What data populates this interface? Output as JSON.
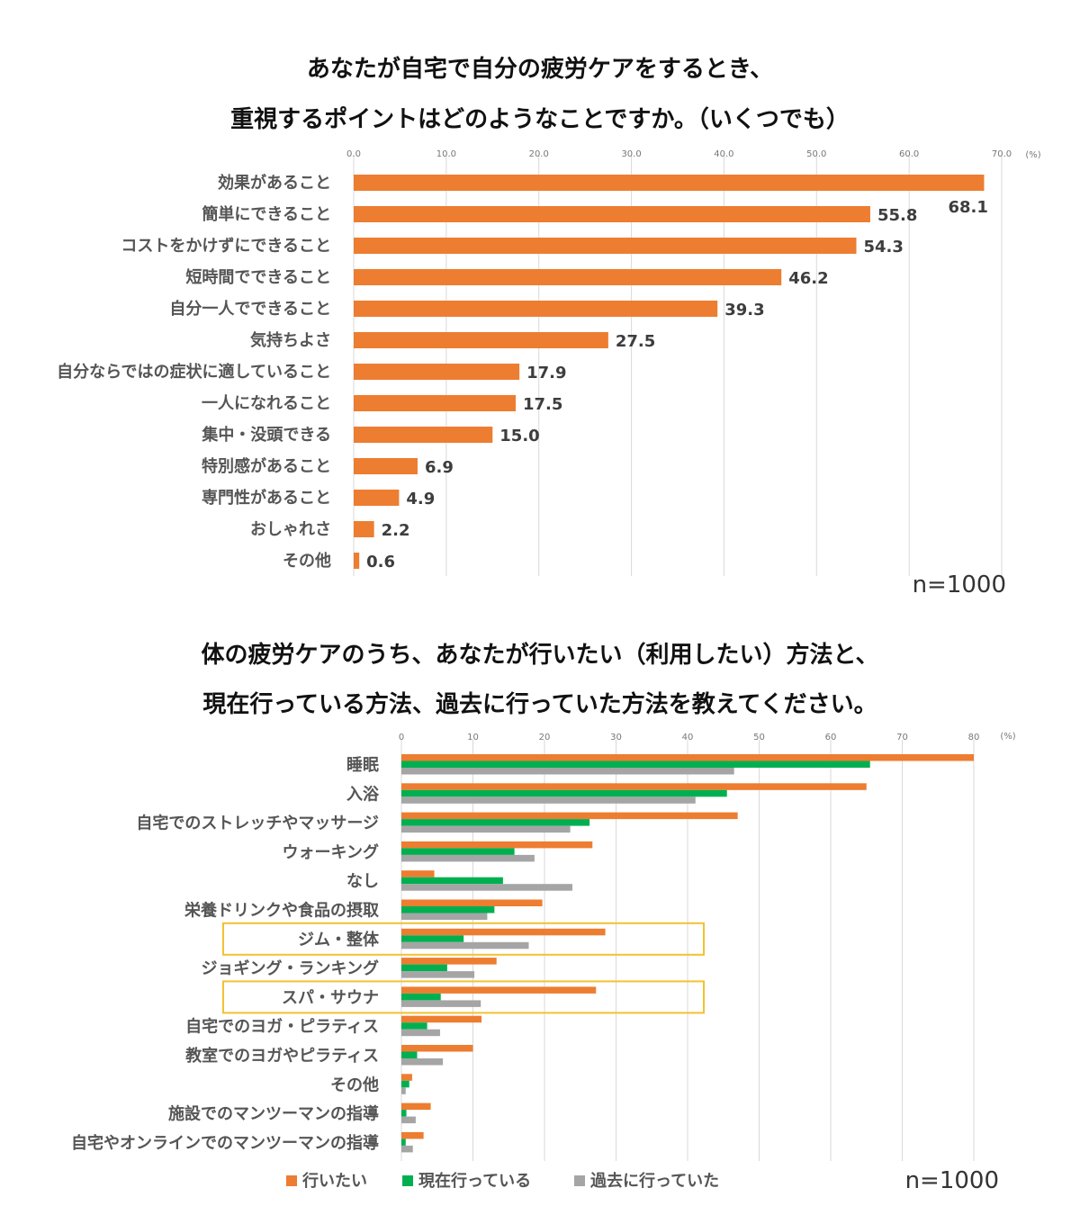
{
  "chart_data": [
    {
      "type": "bar",
      "orientation": "horizontal",
      "title_lines": [
        "あなたが自宅で自分の疲労ケアをするとき、",
        "重視するポイントはどのようなことですか。（いくつでも）"
      ],
      "unit_label": "(%)",
      "xlim": [
        0,
        70
      ],
      "ticks": [
        "0.0",
        "10.0",
        "20.0",
        "30.0",
        "40.0",
        "50.0",
        "60.0",
        "70.0"
      ],
      "categories": [
        "効果があること",
        "簡単にできること",
        "コストをかけずにできること",
        "短時間でできること",
        "自分一人でできること",
        "気持ちよさ",
        "自分ならではの症状に適していること",
        "一人になれること",
        "集中・没頭できる",
        "特別感があること",
        "専門性があること",
        "おしゃれさ",
        "その他"
      ],
      "values": [
        68.1,
        55.8,
        54.3,
        46.2,
        39.3,
        27.5,
        17.9,
        17.5,
        15.0,
        6.9,
        4.9,
        2.2,
        0.6
      ],
      "value_labels": [
        "68.1",
        "55.8",
        "54.3",
        "46.2",
        "39.3",
        "27.5",
        "17.9",
        "17.5",
        "15.0",
        "6.9",
        "4.9",
        "2.2",
        "0.6"
      ],
      "color": "#ED7D31",
      "sample_label": "n=1000"
    },
    {
      "type": "bar",
      "orientation": "horizontal",
      "title_lines": [
        "体の疲労ケアのうち、あなたが行いたい（利用したい）方法と、",
        "現在行っている方法、過去に行っていた方法を教えてください。"
      ],
      "unit_label": "(%)",
      "xlim": [
        0,
        80
      ],
      "ticks": [
        "0",
        "10",
        "20",
        "30",
        "40",
        "50",
        "60",
        "70",
        "80"
      ],
      "categories": [
        "睡眠",
        "入浴",
        "自宅でのストレッチやマッサージ",
        "ウォーキング",
        "なし",
        "栄養ドリンクや食品の摂取",
        "ジム・整体",
        "ジョギング・ランキング",
        "スパ・サウナ",
        "自宅でのヨガ・ピラティス",
        "教室でのヨガやピラティス",
        "その他",
        "施設でのマンツーマンの指導",
        "自宅やオンラインでのマンツーマンの指導"
      ],
      "series": [
        {
          "name": "行いたい",
          "color": "#ED7D31",
          "values": [
            80,
            65,
            47,
            26.7,
            4.6,
            19.7,
            28.5,
            13.3,
            27.2,
            11.2,
            10,
            1.5,
            4.1,
            3.1
          ]
        },
        {
          "name": "現在行っている",
          "color": "#00B050",
          "values": [
            65.5,
            45.5,
            26.3,
            15.8,
            14.2,
            13,
            8.7,
            6.4,
            5.5,
            3.6,
            2.2,
            1.1,
            0.7,
            0.6
          ]
        },
        {
          "name": "過去に行っていた",
          "color": "#A5A5A5",
          "values": [
            46.5,
            41.1,
            23.6,
            18.6,
            23.9,
            12,
            17.8,
            10.2,
            11.1,
            5.4,
            5.8,
            0.6,
            2,
            1.6
          ]
        }
      ],
      "highlighted": [
        "ジム・整体",
        "スパ・サウナ"
      ],
      "highlight_color": "#F2C230",
      "sample_label": "n=1000"
    }
  ]
}
